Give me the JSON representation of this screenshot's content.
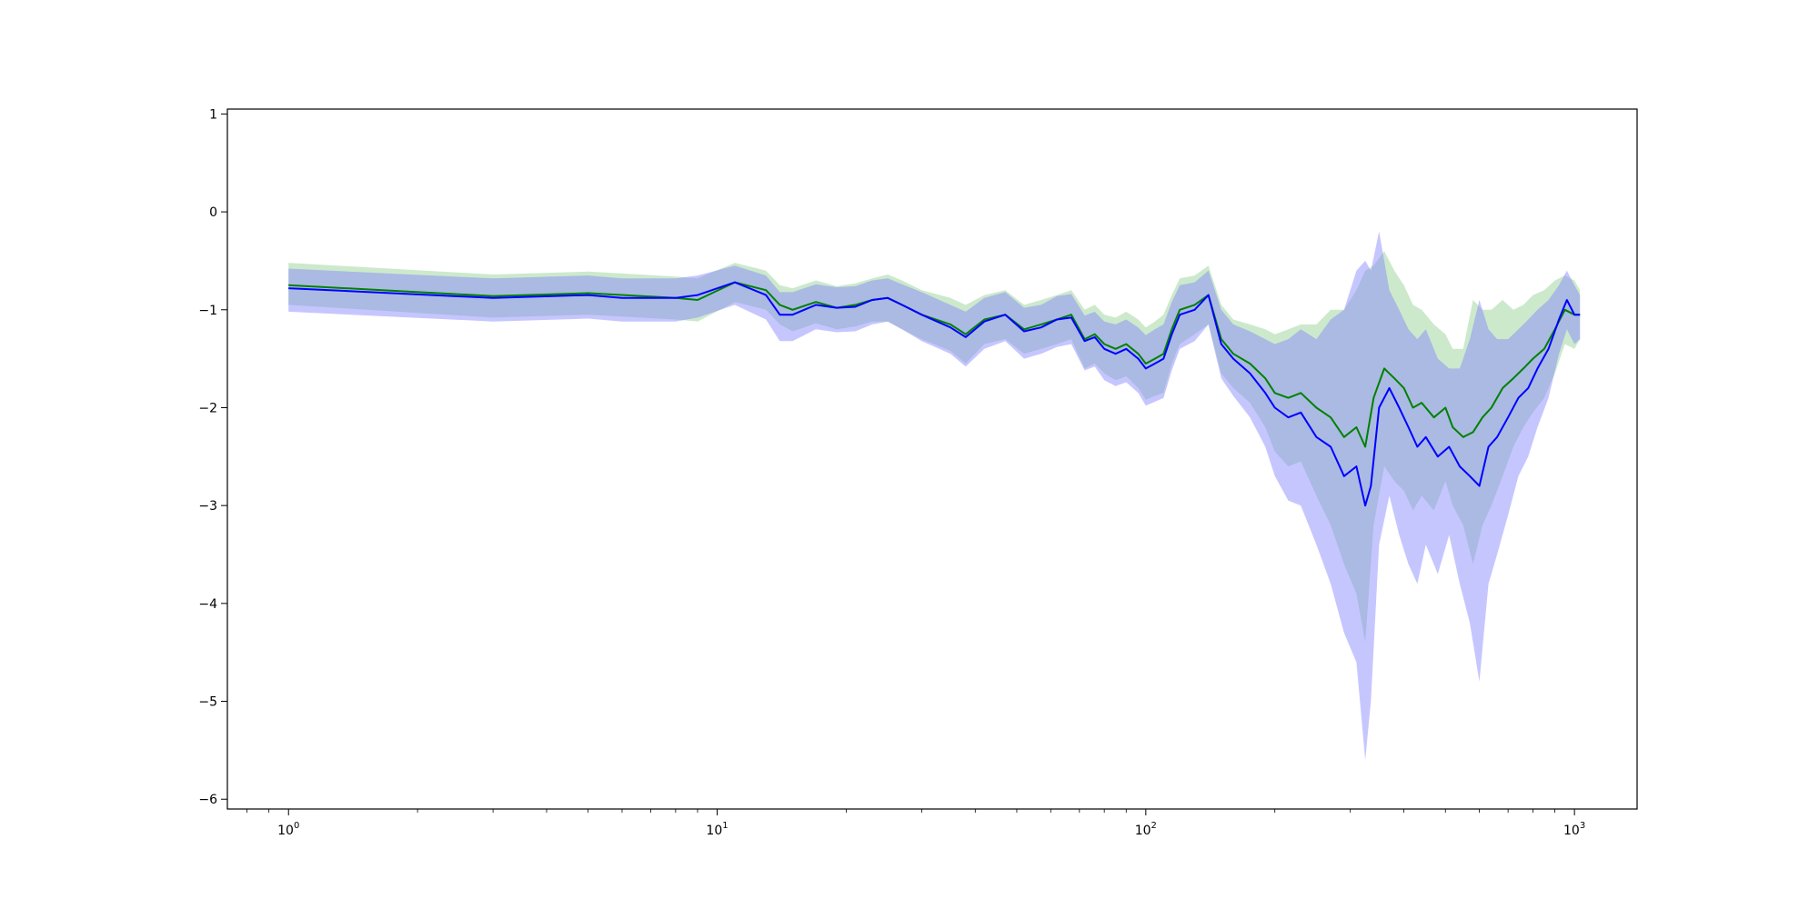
{
  "chart_data": {
    "type": "line",
    "title": "",
    "xlabel": "",
    "ylabel": "",
    "xscale": "log",
    "xlim": [
      0.72,
      1400
    ],
    "ylim": [
      -6.1,
      1.05
    ],
    "grid": false,
    "legend": "none",
    "xticks": [
      {
        "base": "10",
        "exp": "0",
        "value": 1
      },
      {
        "base": "10",
        "exp": "1",
        "value": 10
      },
      {
        "base": "10",
        "exp": "2",
        "value": 100
      },
      {
        "base": "10",
        "exp": "3",
        "value": 1000
      }
    ],
    "yticks": [
      "1",
      "0",
      "−1",
      "−2",
      "−3",
      "−4",
      "−5",
      "−6"
    ],
    "series": [
      {
        "color": "#008000",
        "band_color": "#8fcf8f",
        "x": [
          1,
          3,
          5,
          8,
          9,
          11,
          13,
          14,
          15,
          17,
          19,
          21,
          23,
          25,
          27,
          30,
          35,
          38,
          42,
          47,
          52,
          57,
          62,
          67,
          72,
          76,
          80,
          85,
          90,
          96,
          100,
          105,
          110,
          115,
          120,
          130,
          140,
          150,
          160,
          175,
          190,
          200,
          215,
          230,
          250,
          270,
          290,
          310,
          325,
          340,
          360,
          380,
          400,
          420,
          440,
          470,
          500,
          520,
          550,
          580,
          610,
          640,
          680,
          720,
          760,
          800,
          850,
          900,
          950,
          1000,
          1030
        ],
        "y": [
          -0.75,
          -0.86,
          -0.83,
          -0.88,
          -0.9,
          -0.72,
          -0.8,
          -0.95,
          -1.0,
          -0.92,
          -0.98,
          -0.95,
          -0.9,
          -0.88,
          -0.95,
          -1.05,
          -1.15,
          -1.25,
          -1.1,
          -1.05,
          -1.2,
          -1.15,
          -1.1,
          -1.05,
          -1.3,
          -1.25,
          -1.35,
          -1.4,
          -1.35,
          -1.45,
          -1.55,
          -1.5,
          -1.45,
          -1.2,
          -1.0,
          -0.95,
          -0.85,
          -1.3,
          -1.45,
          -1.55,
          -1.7,
          -1.85,
          -1.9,
          -1.85,
          -2.0,
          -2.1,
          -2.3,
          -2.2,
          -2.4,
          -1.9,
          -1.6,
          -1.7,
          -1.8,
          -2.0,
          -1.95,
          -2.1,
          -2.0,
          -2.2,
          -2.3,
          -2.25,
          -2.1,
          -2.0,
          -1.8,
          -1.7,
          -1.6,
          -1.5,
          -1.4,
          -1.2,
          -1.0,
          -1.05,
          -1.05
        ],
        "lower": [
          -0.95,
          -1.08,
          -1.05,
          -1.1,
          -1.12,
          -0.92,
          -1.0,
          -1.15,
          -1.22,
          -1.14,
          -1.2,
          -1.17,
          -1.12,
          -1.12,
          -1.2,
          -1.3,
          -1.42,
          -1.55,
          -1.35,
          -1.3,
          -1.45,
          -1.4,
          -1.35,
          -1.3,
          -1.6,
          -1.55,
          -1.65,
          -1.72,
          -1.68,
          -1.8,
          -1.92,
          -1.88,
          -1.85,
          -1.55,
          -1.35,
          -1.25,
          -1.15,
          -1.65,
          -1.8,
          -1.95,
          -2.2,
          -2.45,
          -2.6,
          -2.55,
          -2.9,
          -3.2,
          -3.6,
          -3.9,
          -4.4,
          -3.2,
          -2.6,
          -2.75,
          -2.85,
          -3.05,
          -2.9,
          -3.05,
          -2.75,
          -3.0,
          -3.2,
          -3.6,
          -3.2,
          -3.0,
          -2.7,
          -2.4,
          -2.2,
          -2.05,
          -1.9,
          -1.65,
          -1.35,
          -1.4,
          -1.3
        ],
        "upper": [
          -0.52,
          -0.64,
          -0.61,
          -0.66,
          -0.68,
          -0.52,
          -0.6,
          -0.75,
          -0.78,
          -0.7,
          -0.76,
          -0.73,
          -0.68,
          -0.64,
          -0.7,
          -0.8,
          -0.88,
          -0.95,
          -0.85,
          -0.8,
          -0.95,
          -0.9,
          -0.85,
          -0.8,
          -1.0,
          -0.95,
          -1.05,
          -1.08,
          -1.02,
          -1.1,
          -1.18,
          -1.12,
          -1.05,
          -0.85,
          -0.68,
          -0.65,
          -0.55,
          -0.95,
          -1.1,
          -1.15,
          -1.2,
          -1.25,
          -1.2,
          -1.15,
          -1.15,
          -1.0,
          -1.0,
          -0.8,
          -0.6,
          -0.55,
          -0.4,
          -0.6,
          -0.75,
          -0.95,
          -1.0,
          -1.15,
          -1.25,
          -1.4,
          -1.4,
          -0.9,
          -1.0,
          -1.0,
          -0.9,
          -1.0,
          -0.95,
          -0.85,
          -0.8,
          -0.7,
          -0.65,
          -0.7,
          -0.8
        ]
      },
      {
        "color": "#0000ff",
        "band_color": "#8080ff",
        "x": [
          1,
          3,
          5,
          6,
          8,
          9,
          11,
          13,
          14,
          15,
          17,
          19,
          21,
          23,
          25,
          27,
          30,
          35,
          38,
          42,
          47,
          52,
          57,
          62,
          67,
          72,
          76,
          80,
          85,
          90,
          96,
          100,
          105,
          110,
          115,
          120,
          130,
          140,
          150,
          160,
          175,
          190,
          200,
          215,
          230,
          250,
          270,
          290,
          310,
          325,
          335,
          350,
          370,
          390,
          410,
          430,
          450,
          480,
          510,
          540,
          570,
          600,
          630,
          660,
          700,
          740,
          780,
          820,
          870,
          920,
          960,
          1000,
          1030
        ],
        "y": [
          -0.78,
          -0.88,
          -0.85,
          -0.88,
          -0.88,
          -0.85,
          -0.72,
          -0.85,
          -1.05,
          -1.05,
          -0.95,
          -0.98,
          -0.97,
          -0.9,
          -0.88,
          -0.95,
          -1.05,
          -1.18,
          -1.28,
          -1.12,
          -1.05,
          -1.22,
          -1.18,
          -1.1,
          -1.08,
          -1.32,
          -1.28,
          -1.4,
          -1.45,
          -1.4,
          -1.5,
          -1.6,
          -1.55,
          -1.5,
          -1.25,
          -1.05,
          -1.0,
          -0.85,
          -1.35,
          -1.5,
          -1.65,
          -1.85,
          -2.0,
          -2.1,
          -2.05,
          -2.3,
          -2.4,
          -2.7,
          -2.6,
          -3.0,
          -2.8,
          -2.0,
          -1.8,
          -2.0,
          -2.2,
          -2.4,
          -2.3,
          -2.5,
          -2.4,
          -2.6,
          -2.7,
          -2.8,
          -2.4,
          -2.3,
          -2.1,
          -1.9,
          -1.8,
          -1.6,
          -1.4,
          -1.1,
          -0.9,
          -1.05,
          -1.05
        ],
        "lower": [
          -1.02,
          -1.12,
          -1.09,
          -1.12,
          -1.12,
          -1.08,
          -0.95,
          -1.1,
          -1.32,
          -1.32,
          -1.2,
          -1.23,
          -1.22,
          -1.15,
          -1.12,
          -1.2,
          -1.32,
          -1.45,
          -1.58,
          -1.4,
          -1.32,
          -1.5,
          -1.45,
          -1.38,
          -1.35,
          -1.62,
          -1.58,
          -1.72,
          -1.78,
          -1.74,
          -1.85,
          -1.98,
          -1.94,
          -1.9,
          -1.62,
          -1.4,
          -1.32,
          -1.15,
          -1.7,
          -1.88,
          -2.1,
          -2.4,
          -2.7,
          -2.95,
          -3.0,
          -3.4,
          -3.8,
          -4.3,
          -4.6,
          -5.6,
          -5.0,
          -3.4,
          -2.9,
          -3.3,
          -3.6,
          -3.8,
          -3.4,
          -3.7,
          -3.3,
          -3.8,
          -4.2,
          -4.8,
          -3.8,
          -3.5,
          -3.1,
          -2.7,
          -2.5,
          -2.2,
          -1.9,
          -1.45,
          -1.2,
          -1.35,
          -1.3
        ],
        "upper": [
          -0.58,
          -0.68,
          -0.65,
          -0.68,
          -0.68,
          -0.65,
          -0.55,
          -0.65,
          -0.82,
          -0.82,
          -0.74,
          -0.77,
          -0.76,
          -0.7,
          -0.68,
          -0.74,
          -0.82,
          -0.95,
          -1.02,
          -0.88,
          -0.82,
          -0.98,
          -0.95,
          -0.86,
          -0.84,
          -1.06,
          -1.02,
          -1.12,
          -1.15,
          -1.1,
          -1.18,
          -1.26,
          -1.2,
          -1.15,
          -0.92,
          -0.75,
          -0.72,
          -0.6,
          -1.0,
          -1.15,
          -1.22,
          -1.3,
          -1.35,
          -1.3,
          -1.2,
          -1.3,
          -1.1,
          -1.0,
          -0.6,
          -0.5,
          -0.6,
          -0.2,
          -0.8,
          -1.0,
          -1.2,
          -1.3,
          -1.2,
          -1.5,
          -1.6,
          -1.6,
          -1.3,
          -0.9,
          -1.2,
          -1.3,
          -1.3,
          -1.2,
          -1.1,
          -1.0,
          -0.9,
          -0.75,
          -0.6,
          -0.75,
          -0.85
        ]
      }
    ]
  }
}
